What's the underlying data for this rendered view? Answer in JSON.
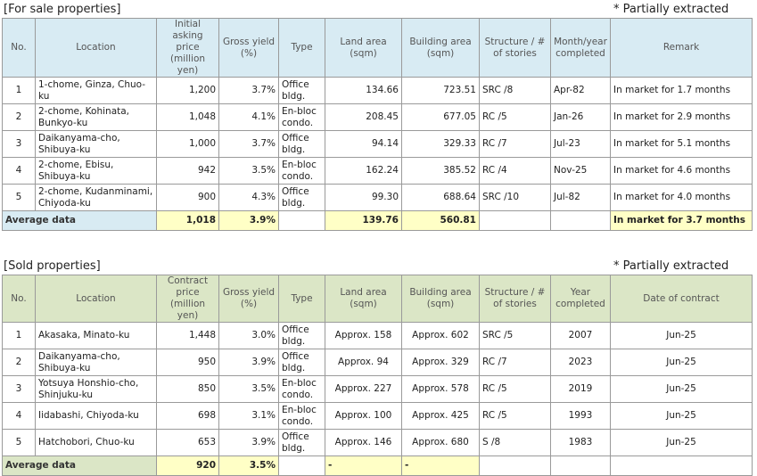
{
  "for_sale": {
    "title": "[For sale properties]",
    "note": "* Partially extracted",
    "headers": [
      "No.",
      "Location",
      "Initial asking price (million yen)",
      "Gross yield (%)",
      "Type",
      "Land area (sqm)",
      "Building area (sqm)",
      "Structure / # of stories",
      "Month/year completed",
      "Remark"
    ],
    "rows": [
      {
        "no": "1",
        "location": "1-chome, Ginza, Chuo-ku",
        "price": "1,200",
        "yield": "3.7%",
        "type": "Office bldg.",
        "land": "134.66",
        "building": "723.51",
        "structure": "SRC /8",
        "completed": "Apr-82",
        "remark": "In market for 1.7 months"
      },
      {
        "no": "2",
        "location": "2-chome, Kohinata, Bunkyo-ku",
        "price": "1,048",
        "yield": "4.1%",
        "type": "En-bloc condo.",
        "land": "208.45",
        "building": "677.05",
        "structure": "RC /5",
        "completed": "Jan-26",
        "remark": "In market for 2.9 months"
      },
      {
        "no": "3",
        "location": "Daikanyama-cho, Shibuya-ku",
        "price": "1,000",
        "yield": "3.7%",
        "type": "Office bldg.",
        "land": "94.14",
        "building": "329.33",
        "structure": "RC /7",
        "completed": "Jul-23",
        "remark": "In market for 5.1 months"
      },
      {
        "no": "4",
        "location": "2-chome, Ebisu, Shibuya-ku",
        "price": "942",
        "yield": "3.5%",
        "type": "En-bloc condo.",
        "land": "162.24",
        "building": "385.52",
        "structure": "RC /4",
        "completed": "Nov-25",
        "remark": "In market for 4.6 months"
      },
      {
        "no": "5",
        "location": "2-chome, Kudanminami, Chiyoda-ku",
        "price": "900",
        "yield": "4.3%",
        "type": "Office bldg.",
        "land": "99.30",
        "building": "688.64",
        "structure": "SRC /10",
        "completed": "Jul-82",
        "remark": "In market for 4.0 months"
      }
    ],
    "average": {
      "label": "Average data",
      "price": "1,018",
      "yield": "3.9%",
      "land": "139.76",
      "building": "560.81",
      "remark": "In market for 3.7 months"
    }
  },
  "sold": {
    "title": "[Sold properties]",
    "note": "* Partially extracted",
    "headers": [
      "No.",
      "Location",
      "Contract price (million yen)",
      "Gross yield (%)",
      "Type",
      "Land area (sqm)",
      "Building area (sqm)",
      "Structure / # of stories",
      "Year completed",
      "Date of contract"
    ],
    "rows": [
      {
        "no": "1",
        "location": "Akasaka, Minato-ku",
        "price": "1,448",
        "yield": "3.0%",
        "type": "Office bldg.",
        "land": "Approx. 158",
        "building": "Approx. 602",
        "structure": "SRC /5",
        "completed": "2007",
        "contract": "Jun-25"
      },
      {
        "no": "2",
        "location": "Daikanyama-cho, Shibuya-ku",
        "price": "950",
        "yield": "3.9%",
        "type": "Office bldg.",
        "land": "Approx. 94",
        "building": "Approx. 329",
        "structure": "RC /7",
        "completed": "2023",
        "contract": "Jun-25"
      },
      {
        "no": "3",
        "location": "Yotsuya Honshio-cho, Shinjuku-ku",
        "price": "850",
        "yield": "3.5%",
        "type": "En-bloc condo.",
        "land": "Approx. 227",
        "building": "Approx. 578",
        "structure": "RC /5",
        "completed": "2019",
        "contract": "Jun-25"
      },
      {
        "no": "4",
        "location": "Iidabashi, Chiyoda-ku",
        "price": "698",
        "yield": "3.1%",
        "type": "En-bloc condo.",
        "land": "Approx. 100",
        "building": "Approx. 425",
        "structure": "RC /5",
        "completed": "1993",
        "contract": "Jun-25"
      },
      {
        "no": "5",
        "location": "Hatchobori, Chuo-ku",
        "price": "653",
        "yield": "3.9%",
        "type": "Office bldg.",
        "land": "Approx. 146",
        "building": "Approx. 680",
        "structure": "S /8",
        "completed": "1983",
        "contract": "Jun-25"
      }
    ],
    "average": {
      "label": "Average data",
      "price": "920",
      "yield": "3.5%",
      "land": "-",
      "building": "-"
    }
  }
}
